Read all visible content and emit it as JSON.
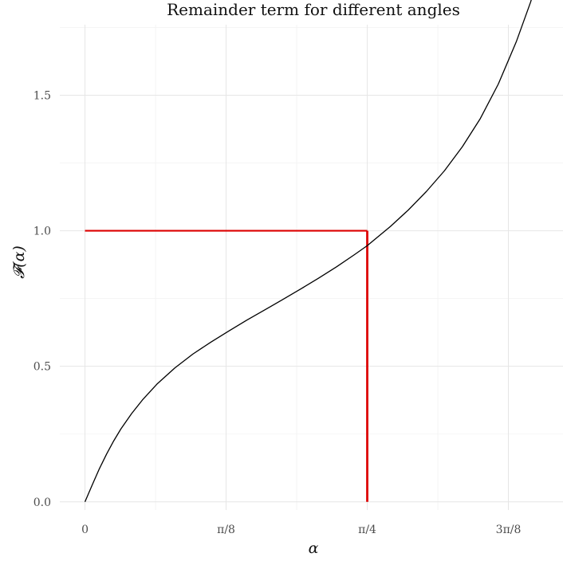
{
  "chart_data": {
    "type": "line",
    "title": "Remainder term for different angles",
    "xlabel": "α",
    "ylabel": "𝓕(α)",
    "xlim": [
      -0.07,
      1.33
    ],
    "ylim": [
      -0.03,
      1.76
    ],
    "x_ticks": [
      {
        "value": 0,
        "label": "0"
      },
      {
        "value": 0.392699,
        "label": "π/8"
      },
      {
        "value": 0.785398,
        "label": "π/4"
      },
      {
        "value": 1.178097,
        "label": "3π/8"
      }
    ],
    "y_ticks": [
      {
        "value": 0.0,
        "label": "0.0"
      },
      {
        "value": 0.5,
        "label": "0.5"
      },
      {
        "value": 1.0,
        "label": "1.0"
      },
      {
        "value": 1.5,
        "label": "1.5"
      }
    ],
    "grid": true,
    "series": [
      {
        "color": "#000000",
        "x": [
          0,
          0.02,
          0.04,
          0.06,
          0.08,
          0.1,
          0.13,
          0.16,
          0.2,
          0.25,
          0.3,
          0.35,
          0.4,
          0.45,
          0.5,
          0.55,
          0.6,
          0.65,
          0.7,
          0.75,
          0.785398,
          0.85,
          0.9,
          0.95,
          1.0,
          1.05,
          1.1,
          1.15,
          1.2,
          1.24,
          1.26
        ],
        "y": [
          0.0,
          0.062,
          0.122,
          0.176,
          0.225,
          0.269,
          0.326,
          0.376,
          0.434,
          0.494,
          0.545,
          0.589,
          0.63,
          0.67,
          0.708,
          0.746,
          0.785,
          0.825,
          0.867,
          0.912,
          0.945,
          1.016,
          1.077,
          1.145,
          1.221,
          1.31,
          1.414,
          1.541,
          1.697,
          1.844,
          1.932
        ]
      }
    ],
    "reference_lines": {
      "color": "#dd0000",
      "x": 0.785398,
      "y": 1.0
    }
  }
}
